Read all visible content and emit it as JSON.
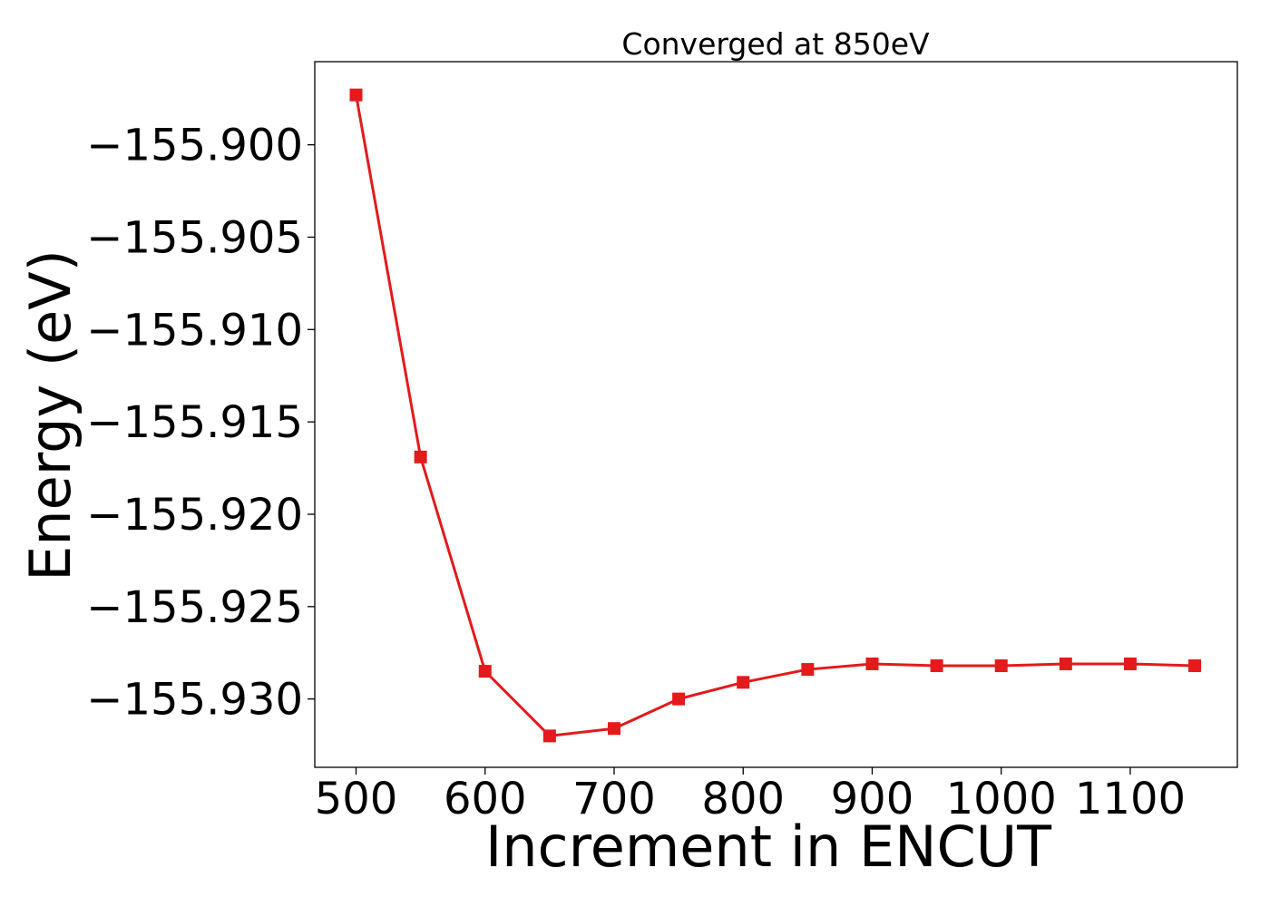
{
  "chart_data": {
    "type": "line",
    "title": "Converged at 850eV",
    "xlabel": "Increment in ENCUT",
    "ylabel": "Energy (eV)",
    "xlim": [
      468,
      1183
    ],
    "ylim": [
      -155.9337,
      -155.8955
    ],
    "xticks": [
      500,
      600,
      700,
      800,
      900,
      1000,
      1100
    ],
    "xtick_labels": [
      "500",
      "600",
      "700",
      "800",
      "900",
      "1000",
      "1100"
    ],
    "yticks": [
      -155.9,
      -155.905,
      -155.91,
      -155.915,
      -155.92,
      -155.925,
      -155.93
    ],
    "ytick_labels": [
      "−155.900",
      "−155.905",
      "−155.910",
      "−155.915",
      "−155.920",
      "−155.925",
      "−155.930"
    ],
    "grid": false,
    "marker": "square",
    "color": "#e41a1c",
    "series": [
      {
        "x": [
          500,
          550,
          600,
          650,
          700,
          750,
          800,
          850,
          900,
          950,
          1000,
          1050,
          1100,
          1150
        ],
        "y": [
          -155.8973,
          -155.9169,
          -155.9285,
          -155.932,
          -155.9316,
          -155.93,
          -155.9291,
          -155.9284,
          -155.9281,
          -155.9282,
          -155.9282,
          -155.9281,
          -155.9281,
          -155.9282
        ]
      }
    ]
  }
}
